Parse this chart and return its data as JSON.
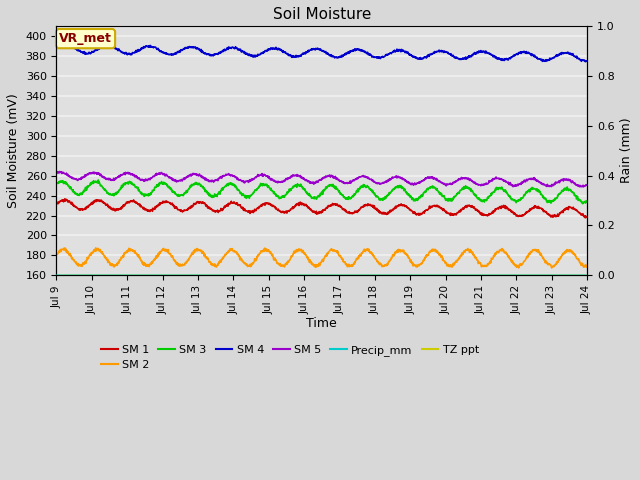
{
  "title": "Soil Moisture",
  "xlabel": "Time",
  "ylabel_left": "Soil Moisture (mV)",
  "ylabel_right": "Rain (mm)",
  "ylim_left": [
    160,
    410
  ],
  "ylim_right": [
    0.0,
    1.0
  ],
  "yticks_left": [
    160,
    180,
    200,
    220,
    240,
    260,
    280,
    300,
    320,
    340,
    360,
    380,
    400
  ],
  "yticks_right": [
    0.0,
    0.2,
    0.4,
    0.6,
    0.8,
    1.0
  ],
  "x_tick_labels": [
    "Jul 9",
    "Jul 10",
    "Jul 11",
    "Jul 12",
    "Jul 13",
    "Jul 14",
    "Jul 15",
    "Jul 16",
    "Jul 17",
    "Jul 18",
    "Jul 19",
    "Jul 20",
    "Jul 21",
    "Jul 22",
    "Jul 23",
    "Jul 24"
  ],
  "bg_color": "#d8d8d8",
  "plot_bg_color": "#e0e0e0",
  "grid_color": "#f0f0f0",
  "annotation_text": "VR_met",
  "annotation_bg": "#ffffcc",
  "annotation_border": "#ccaa00",
  "annotation_text_color": "#880000",
  "sm1_color": "#cc0000",
  "sm2_color": "#ff9900",
  "sm3_color": "#00cc00",
  "sm4_color": "#0000cc",
  "sm5_color": "#9900cc",
  "precip_color": "#00cccc",
  "tz_color": "#cccc00",
  "legend_labels": [
    "SM 1",
    "SM 2",
    "SM 3",
    "SM 4",
    "SM 5",
    "Precip_mm",
    "TZ ppt"
  ],
  "sm1_base": 231,
  "sm1_trend": -0.52,
  "sm1_amp": 4.5,
  "sm1_freq": 1.05,
  "sm2_base": 178,
  "sm2_trend": -0.05,
  "sm2_amp": 8.0,
  "sm2_freq": 1.05,
  "sm3_base": 248,
  "sm3_trend": -0.55,
  "sm3_amp": 6.5,
  "sm3_freq": 1.05,
  "sm4_base": 387,
  "sm4_trend": -0.55,
  "sm4_amp": 4.0,
  "sm4_freq": 0.85,
  "sm5_base": 260,
  "sm5_trend": -0.5,
  "sm5_amp": 3.5,
  "sm5_freq": 1.05
}
